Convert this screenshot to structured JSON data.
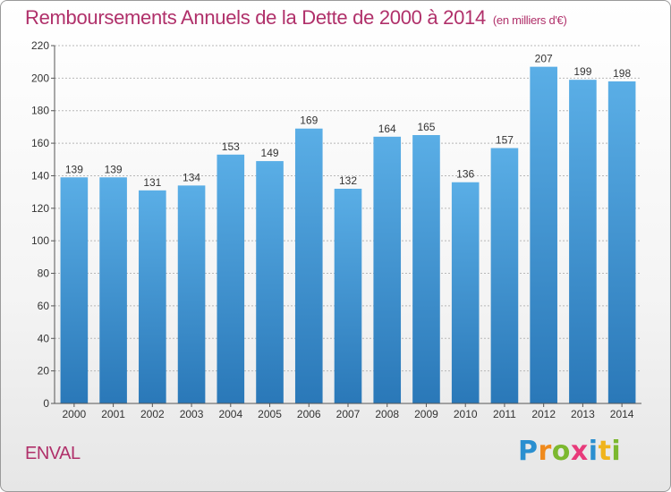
{
  "title": "Remboursements Annuels de la Dette de 2000 à 2014",
  "subtitle": "(en milliers d'€)",
  "commune": "ENVAL",
  "logo": {
    "letters": [
      "P",
      "r",
      "o",
      "x",
      "i",
      "t",
      "i"
    ]
  },
  "colors": {
    "bar_top": "#5aaee6",
    "bar_bottom": "#2a78b8",
    "title": "#b0306a"
  },
  "chart_data": {
    "type": "bar",
    "title": "Remboursements Annuels de la Dette de 2000 à 2014",
    "xlabel": "",
    "ylabel": "",
    "categories": [
      "2000",
      "2001",
      "2002",
      "2003",
      "2004",
      "2005",
      "2006",
      "2007",
      "2008",
      "2009",
      "2010",
      "2011",
      "2012",
      "2013",
      "2014"
    ],
    "values": [
      139,
      139,
      131,
      134,
      153,
      149,
      169,
      132,
      164,
      165,
      136,
      157,
      207,
      199,
      198
    ],
    "ylim": [
      0,
      220
    ],
    "yticks": [
      0,
      20,
      40,
      60,
      80,
      100,
      120,
      140,
      160,
      180,
      200,
      220
    ],
    "grid": true,
    "legend": "none"
  }
}
